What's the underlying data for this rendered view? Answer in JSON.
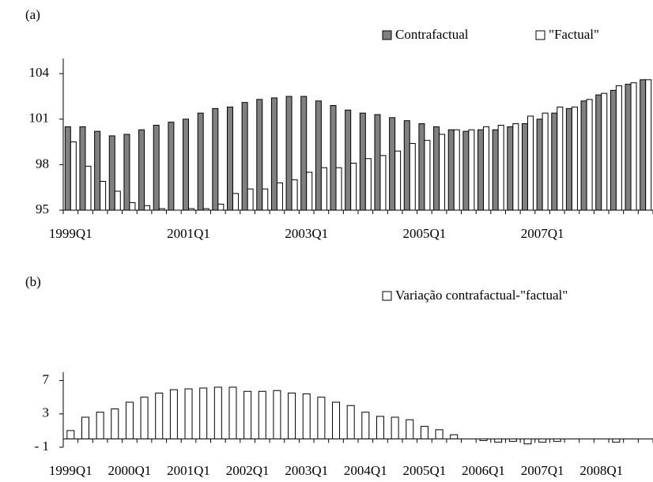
{
  "chart_data": [
    {
      "type": "bar",
      "panel_label": "(a)",
      "categories": [
        "1999Q1",
        null,
        null,
        null,
        null,
        null,
        null,
        null,
        "2001Q1",
        null,
        null,
        null,
        null,
        null,
        null,
        null,
        "2003Q1",
        null,
        null,
        null,
        null,
        null,
        null,
        null,
        "2005Q1",
        null,
        null,
        null,
        null,
        null,
        null,
        null,
        "2007Q1",
        null,
        null,
        null,
        null,
        null,
        null,
        null
      ],
      "series": [
        {
          "name": "Contrafactual",
          "color": "#808080",
          "values": [
            100.5,
            100.5,
            100.2,
            99.9,
            100.0,
            100.3,
            100.6,
            100.8,
            101.0,
            101.4,
            101.7,
            101.8,
            102.1,
            102.3,
            102.4,
            102.5,
            102.5,
            102.2,
            101.9,
            101.6,
            101.4,
            101.3,
            101.1,
            100.9,
            100.7,
            100.5,
            100.3,
            100.2,
            100.3,
            100.3,
            100.5,
            100.7,
            101.0,
            101.4,
            101.7,
            102.2,
            102.6,
            102.9,
            103.3,
            103.6
          ]
        },
        {
          "name": "\"Factual\"",
          "color": "#ffffff",
          "values": [
            99.5,
            97.9,
            96.9,
            96.25,
            95.5,
            95.3,
            95.1,
            95.0,
            95.1,
            95.1,
            95.4,
            96.1,
            96.4,
            96.4,
            96.8,
            97.0,
            97.5,
            97.8,
            97.8,
            98.1,
            98.4,
            98.6,
            98.9,
            99.4,
            99.6,
            100.0,
            100.3,
            100.3,
            100.5,
            100.6,
            100.7,
            101.2,
            101.4,
            101.8,
            101.8,
            102.3,
            102.7,
            103.2,
            103.4,
            103.6
          ]
        }
      ],
      "ylim": [
        95,
        105
      ],
      "yticks": [
        95,
        98,
        101,
        104
      ],
      "legend": "top-right"
    },
    {
      "type": "bar",
      "panel_label": "(b)",
      "categories": [
        "1999Q1",
        null,
        null,
        null,
        "2000Q1",
        null,
        null,
        null,
        "2001Q1",
        null,
        null,
        null,
        "2002Q1",
        null,
        null,
        null,
        "2003Q1",
        null,
        null,
        null,
        "2004Q1",
        null,
        null,
        null,
        "2005Q1",
        null,
        null,
        null,
        "2006Q1",
        null,
        null,
        null,
        "2007Q1",
        null,
        null,
        null,
        "2008Q1",
        null,
        null,
        null
      ],
      "series": [
        {
          "name": "Variação contrafactual-\"factual\"",
          "color": "#ffffff",
          "values": [
            1.0,
            2.6,
            3.2,
            3.6,
            4.4,
            5.0,
            5.5,
            5.9,
            6.0,
            6.1,
            6.2,
            6.2,
            5.7,
            5.7,
            5.8,
            5.5,
            5.4,
            5.0,
            4.4,
            4.0,
            3.2,
            2.7,
            2.6,
            2.3,
            1.5,
            1.1,
            0.5,
            0.0,
            -0.2,
            -0.4,
            -0.3,
            -0.6,
            -0.4,
            -0.3,
            0.0,
            0.0,
            0.0,
            -0.4,
            0.0,
            0.0
          ]
        }
      ],
      "ylim": [
        -1,
        8
      ],
      "yticks": [
        {
          "value": -1,
          "label": "- 1"
        },
        3,
        7
      ],
      "legend": "top-right"
    }
  ]
}
